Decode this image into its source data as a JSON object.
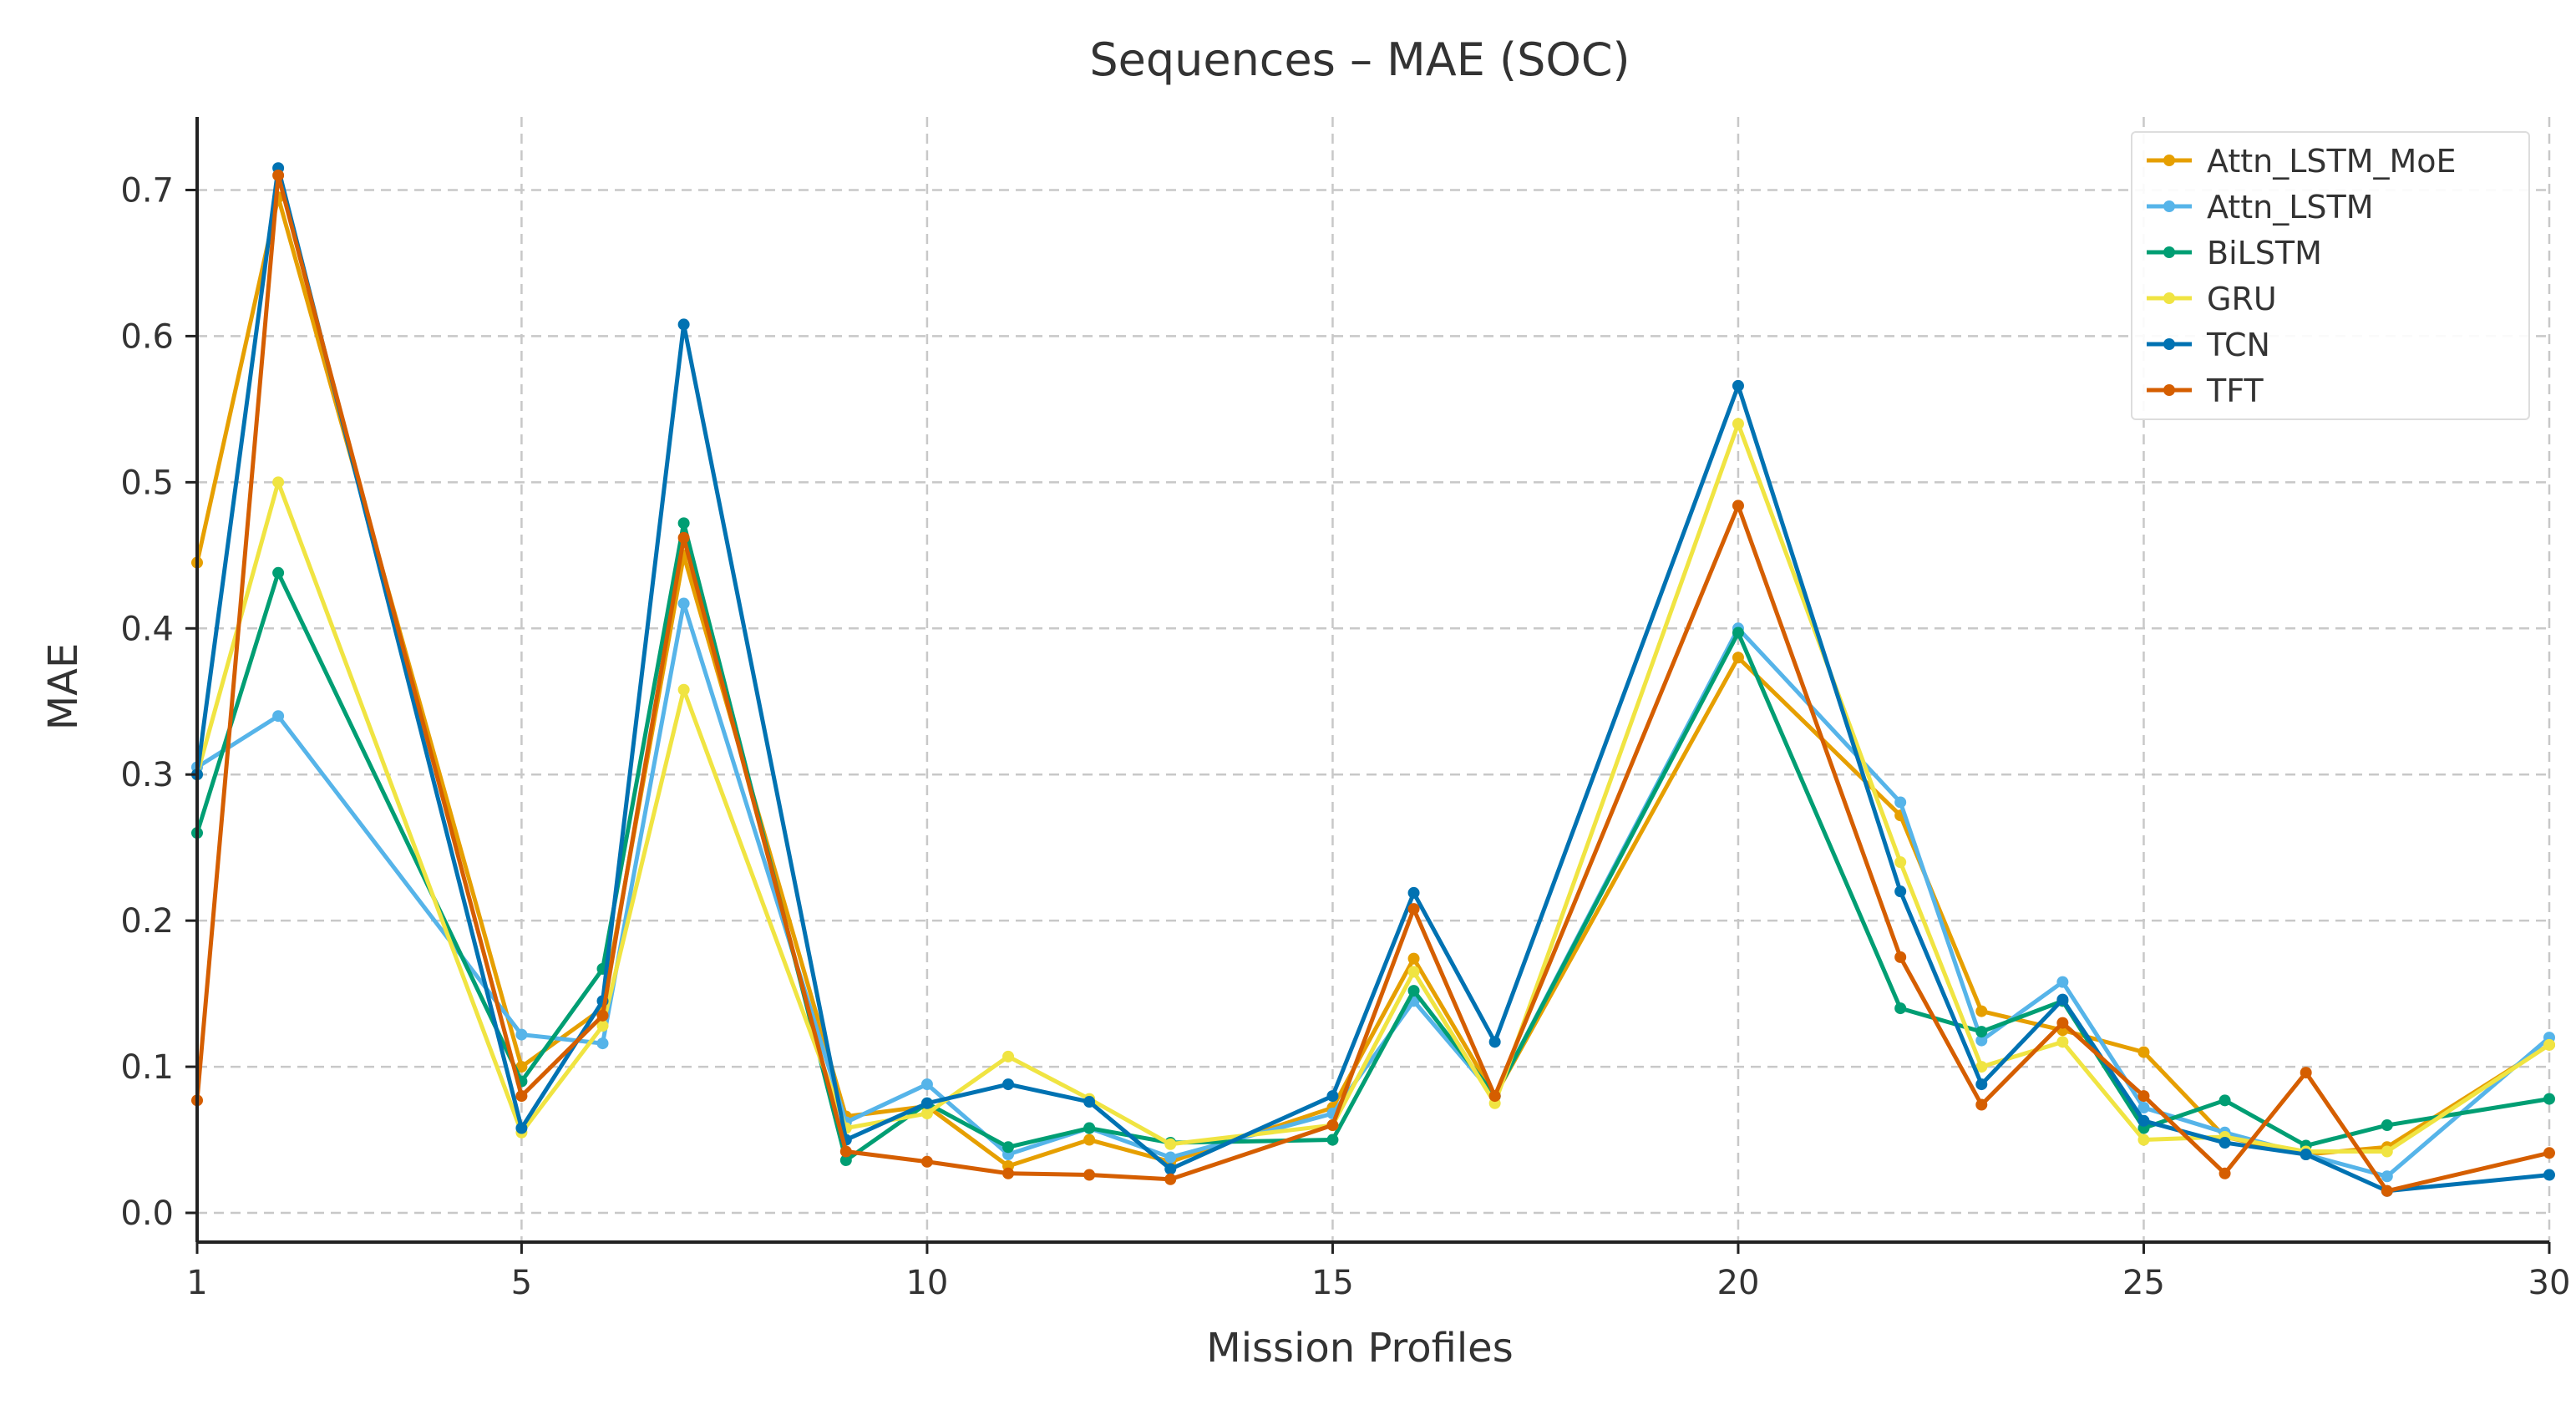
{
  "chart_data": {
    "type": "line",
    "title": "Sequences – MAE (SOC)",
    "xlabel": "Mission Profiles",
    "ylabel": "MAE",
    "xlim": [
      1,
      30
    ],
    "ylim": [
      -0.02,
      0.75
    ],
    "x_ticks": [
      1,
      5,
      10,
      15,
      20,
      25,
      30
    ],
    "y_ticks": [
      0.0,
      0.1,
      0.2,
      0.3,
      0.4,
      0.5,
      0.6,
      0.7
    ],
    "grid": true,
    "legend_position": "top-right",
    "x": [
      1,
      2,
      5,
      6,
      7,
      9,
      10,
      11,
      12,
      13,
      15,
      16,
      17,
      20,
      22,
      23,
      24,
      25,
      26,
      27,
      28,
      30
    ],
    "series": [
      {
        "name": "Attn_LSTM_MoE",
        "color": "#E69F00",
        "values": [
          0.445,
          0.695,
          0.1,
          0.14,
          0.45,
          0.066,
          0.073,
          0.032,
          0.05,
          0.035,
          0.072,
          0.174,
          0.08,
          0.38,
          0.272,
          0.138,
          0.125,
          0.11,
          0.052,
          0.04,
          0.045,
          0.115
        ]
      },
      {
        "name": "Attn_LSTM",
        "color": "#56B4E9",
        "values": [
          0.305,
          0.34,
          0.122,
          0.116,
          0.417,
          0.062,
          0.088,
          0.04,
          0.058,
          0.038,
          0.068,
          0.145,
          0.08,
          0.4,
          0.281,
          0.118,
          0.158,
          0.072,
          0.055,
          0.04,
          0.025,
          0.12
        ]
      },
      {
        "name": "BiLSTM",
        "color": "#009E73",
        "values": [
          0.26,
          0.438,
          0.09,
          0.167,
          0.472,
          0.036,
          0.075,
          0.045,
          0.058,
          0.048,
          0.05,
          0.152,
          0.08,
          0.397,
          0.14,
          0.124,
          0.145,
          0.058,
          0.077,
          0.046,
          0.06,
          0.078
        ]
      },
      {
        "name": "GRU",
        "color": "#F0E442",
        "values": [
          0.3,
          0.5,
          0.055,
          0.128,
          0.358,
          0.058,
          0.068,
          0.107,
          0.078,
          0.047,
          0.06,
          0.165,
          0.075,
          0.54,
          0.24,
          0.1,
          0.117,
          0.05,
          0.052,
          0.042,
          0.042,
          0.115
        ]
      },
      {
        "name": "TCN",
        "color": "#0072B2",
        "values": [
          0.3,
          0.715,
          0.058,
          0.145,
          0.608,
          0.05,
          0.075,
          0.088,
          0.076,
          0.03,
          0.08,
          0.219,
          0.117,
          0.566,
          0.22,
          0.088,
          0.146,
          0.063,
          0.048,
          0.04,
          0.015,
          0.026
        ]
      },
      {
        "name": "TFT",
        "color": "#D55E00",
        "values": [
          0.077,
          0.71,
          0.08,
          0.135,
          0.462,
          0.042,
          0.035,
          0.027,
          0.026,
          0.023,
          0.06,
          0.208,
          0.08,
          0.484,
          0.175,
          0.074,
          0.13,
          0.08,
          0.027,
          0.096,
          0.015,
          0.041
        ]
      }
    ]
  }
}
